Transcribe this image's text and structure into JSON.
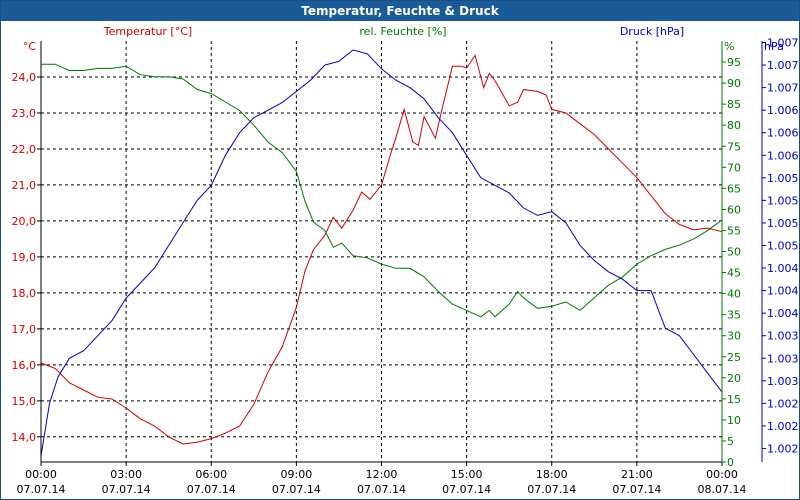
{
  "window": {
    "title": "Temperatur, Feuchte & Druck"
  },
  "colors": {
    "temperature": "#cc0000",
    "humidity": "#007700",
    "pressure": "#0000bb",
    "grid": "#000000"
  },
  "chart_data": {
    "type": "line",
    "title": "Temperatur, Feuchte & Druck",
    "grid": true,
    "series_labels": {
      "temperature": "Temperatur [°C]",
      "humidity": "rel. Feuchte [%]",
      "pressure": "Druck [hPa]"
    },
    "unit_labels": {
      "left": "°C",
      "right1": "%",
      "right2": "hPa"
    },
    "x_axis": {
      "range": [
        0,
        24
      ],
      "tick_hours": [
        0,
        3,
        6,
        9,
        12,
        15,
        18,
        21,
        24
      ],
      "tick_labels": [
        [
          "00:00",
          "07.07.14"
        ],
        [
          "03:00",
          "07.07.14"
        ],
        [
          "06:00",
          "07.07.14"
        ],
        [
          "09:00",
          "07.07.14"
        ],
        [
          "12:00",
          "07.07.14"
        ],
        [
          "15:00",
          "07.07.14"
        ],
        [
          "18:00",
          "07.07.14"
        ],
        [
          "21:00",
          "07.07.14"
        ],
        [
          "00:00",
          "08.07.14"
        ]
      ]
    },
    "y_left": {
      "range": [
        13.3,
        25.0
      ],
      "tick_values": [
        14,
        15,
        16,
        17,
        18,
        19,
        20,
        21,
        22,
        23,
        24
      ],
      "tick_labels": [
        "14,0",
        "15,0",
        "16,0",
        "17,0",
        "18,0",
        "19,0",
        "20,0",
        "21,0",
        "22,0",
        "23,0",
        "24,0"
      ]
    },
    "y_right1": {
      "range": [
        0,
        100
      ],
      "tick_values": [
        0,
        5,
        10,
        15,
        20,
        25,
        30,
        35,
        40,
        45,
        50,
        55,
        60,
        65,
        70,
        75,
        80,
        85,
        90,
        95
      ],
      "tick_labels": [
        "0",
        "5",
        "10",
        "15",
        "20",
        "25",
        "30",
        "35",
        "40",
        "45",
        "50",
        "55",
        "60",
        "65",
        "70",
        "75",
        "80",
        "85",
        "90",
        "95"
      ]
    },
    "y_right2": {
      "range": [
        1001.62,
        1007.22
      ],
      "tick_values": [
        1001.8,
        1002.1,
        1002.4,
        1002.7,
        1003.0,
        1003.3,
        1003.6,
        1003.9,
        1004.2,
        1004.5,
        1004.8,
        1005.1,
        1005.4,
        1005.7,
        1006.0,
        1006.3,
        1006.6,
        1006.9,
        1007.2
      ],
      "tick_labels": [
        "1.002",
        "1.002",
        "1.002",
        "1.003",
        "1.003",
        "1.003",
        "1.004",
        "1.004",
        "1.004",
        "1.005",
        "1.005",
        "1.005",
        "1.005",
        "1.006",
        "1.006",
        "1.006",
        "1.007",
        "1.007",
        "1.007"
      ]
    },
    "series": [
      {
        "key": "temperature",
        "axis": "left",
        "points": [
          [
            0,
            16.05
          ],
          [
            0.5,
            15.9
          ],
          [
            1,
            15.5
          ],
          [
            1.5,
            15.3
          ],
          [
            2,
            15.1
          ],
          [
            2.5,
            15.05
          ],
          [
            3,
            14.8
          ],
          [
            3.5,
            14.5
          ],
          [
            4,
            14.3
          ],
          [
            4.5,
            14.0
          ],
          [
            5,
            13.8
          ],
          [
            5.5,
            13.85
          ],
          [
            6,
            13.95
          ],
          [
            6.5,
            14.1
          ],
          [
            7,
            14.3
          ],
          [
            7.5,
            14.9
          ],
          [
            8,
            15.8
          ],
          [
            8.5,
            16.5
          ],
          [
            9,
            17.6
          ],
          [
            9.3,
            18.6
          ],
          [
            9.6,
            19.2
          ],
          [
            10,
            19.6
          ],
          [
            10.3,
            20.1
          ],
          [
            10.6,
            19.8
          ],
          [
            11,
            20.3
          ],
          [
            11.3,
            20.8
          ],
          [
            11.6,
            20.6
          ],
          [
            12,
            21.0
          ],
          [
            12.3,
            21.8
          ],
          [
            12.5,
            22.3
          ],
          [
            12.8,
            23.1
          ],
          [
            13.1,
            22.2
          ],
          [
            13.3,
            22.1
          ],
          [
            13.5,
            22.9
          ],
          [
            13.9,
            22.3
          ],
          [
            14.1,
            23.0
          ],
          [
            14.5,
            24.3
          ],
          [
            14.8,
            24.3
          ],
          [
            15.0,
            24.25
          ],
          [
            15.3,
            24.6
          ],
          [
            15.6,
            23.7
          ],
          [
            15.8,
            24.1
          ],
          [
            16.0,
            23.9
          ],
          [
            16.5,
            23.2
          ],
          [
            16.8,
            23.3
          ],
          [
            17.0,
            23.65
          ],
          [
            17.5,
            23.6
          ],
          [
            17.8,
            23.5
          ],
          [
            18.0,
            23.1
          ],
          [
            18.5,
            23.0
          ],
          [
            19.0,
            22.7
          ],
          [
            19.5,
            22.4
          ],
          [
            20.0,
            22.0
          ],
          [
            20.5,
            21.6
          ],
          [
            21.0,
            21.2
          ],
          [
            21.5,
            20.7
          ],
          [
            22.0,
            20.2
          ],
          [
            22.5,
            19.9
          ],
          [
            23.0,
            19.75
          ],
          [
            23.5,
            19.8
          ],
          [
            24,
            19.7
          ]
        ]
      },
      {
        "key": "humidity",
        "axis": "right1",
        "points": [
          [
            0,
            94.5
          ],
          [
            0.5,
            94.5
          ],
          [
            1,
            93.0
          ],
          [
            1.5,
            93.0
          ],
          [
            2,
            93.5
          ],
          [
            2.5,
            93.5
          ],
          [
            3,
            94
          ],
          [
            3.5,
            92.0
          ],
          [
            4,
            91.5
          ],
          [
            4.5,
            91.5
          ],
          [
            5,
            91.0
          ],
          [
            5.5,
            88.5
          ],
          [
            6,
            87.5
          ],
          [
            6.5,
            85.5
          ],
          [
            7,
            83.5
          ],
          [
            7.5,
            80.0
          ],
          [
            8,
            76.0
          ],
          [
            8.5,
            73.5
          ],
          [
            9,
            69.0
          ],
          [
            9.3,
            62.0
          ],
          [
            9.6,
            57.0
          ],
          [
            10,
            55.0
          ],
          [
            10.3,
            51.0
          ],
          [
            10.6,
            52.0
          ],
          [
            11,
            49.0
          ],
          [
            11.5,
            48.5
          ],
          [
            12,
            47.0
          ],
          [
            12.5,
            46.0
          ],
          [
            13,
            46.0
          ],
          [
            13.5,
            44.0
          ],
          [
            14.0,
            40.5
          ],
          [
            14.5,
            37.5
          ],
          [
            15.0,
            36.0
          ],
          [
            15.5,
            34.5
          ],
          [
            15.8,
            36.0
          ],
          [
            16.0,
            34.5
          ],
          [
            16.5,
            37.5
          ],
          [
            16.8,
            40.5
          ],
          [
            17.0,
            39.0
          ],
          [
            17.5,
            36.5
          ],
          [
            18.0,
            37.0
          ],
          [
            18.5,
            38.0
          ],
          [
            19.0,
            36.0
          ],
          [
            19.5,
            39.0
          ],
          [
            20.0,
            42.0
          ],
          [
            20.5,
            44.0
          ],
          [
            21.0,
            47.0
          ],
          [
            21.5,
            49.0
          ],
          [
            22.0,
            50.5
          ],
          [
            22.5,
            51.5
          ],
          [
            23.0,
            53.0
          ],
          [
            23.5,
            55.0
          ],
          [
            24,
            57.5
          ]
        ]
      },
      {
        "key": "pressure",
        "axis": "right2",
        "points": [
          [
            0,
            1001.7
          ],
          [
            0.3,
            1002.4
          ],
          [
            0.6,
            1002.75
          ],
          [
            1,
            1003.0
          ],
          [
            1.5,
            1003.1
          ],
          [
            2,
            1003.3
          ],
          [
            2.5,
            1003.5
          ],
          [
            3,
            1003.8
          ],
          [
            3.5,
            1004.0
          ],
          [
            4,
            1004.2
          ],
          [
            4.5,
            1004.5
          ],
          [
            5,
            1004.8
          ],
          [
            5.5,
            1005.1
          ],
          [
            6,
            1005.3
          ],
          [
            6.5,
            1005.7
          ],
          [
            7,
            1006.0
          ],
          [
            7.5,
            1006.2
          ],
          [
            8,
            1006.3
          ],
          [
            8.5,
            1006.4
          ],
          [
            9,
            1006.55
          ],
          [
            9.5,
            1006.7
          ],
          [
            10,
            1006.9
          ],
          [
            10.5,
            1006.95
          ],
          [
            11,
            1007.1
          ],
          [
            11.5,
            1007.05
          ],
          [
            12,
            1006.85
          ],
          [
            12.5,
            1006.7
          ],
          [
            13,
            1006.6
          ],
          [
            13.5,
            1006.45
          ],
          [
            14,
            1006.2
          ],
          [
            14.5,
            1006.0
          ],
          [
            15,
            1005.7
          ],
          [
            15.5,
            1005.4
          ],
          [
            16,
            1005.3
          ],
          [
            16.5,
            1005.2
          ],
          [
            17,
            1005.0
          ],
          [
            17.5,
            1004.9
          ],
          [
            18,
            1004.95
          ],
          [
            18.5,
            1004.8
          ],
          [
            19,
            1004.5
          ],
          [
            19.5,
            1004.3
          ],
          [
            20,
            1004.15
          ],
          [
            20.5,
            1004.05
          ],
          [
            21,
            1003.9
          ],
          [
            21.5,
            1003.9
          ],
          [
            22,
            1003.4
          ],
          [
            22.5,
            1003.3
          ],
          [
            23,
            1003.05
          ],
          [
            23.5,
            1002.8
          ],
          [
            24,
            1002.55
          ]
        ]
      }
    ]
  }
}
